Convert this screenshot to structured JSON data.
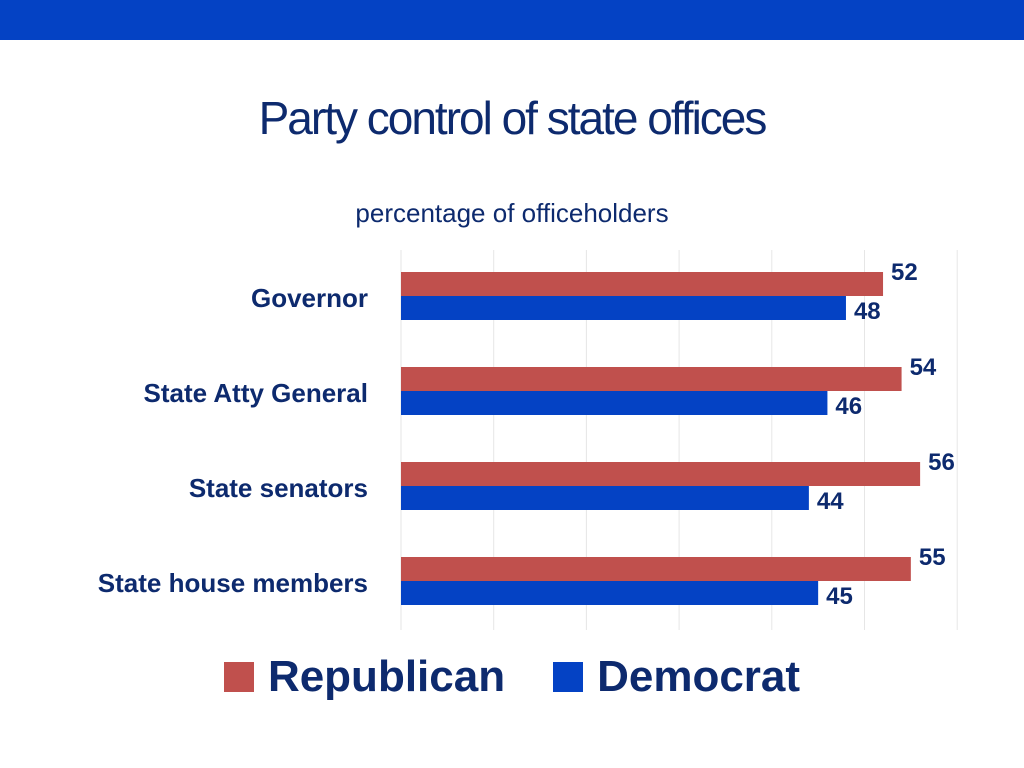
{
  "title": "Party control of state offices",
  "subtitle": "percentage of officeholders",
  "colors": {
    "republican": "#c0504d",
    "democrat": "#0442c4",
    "text": "#0d2a6e"
  },
  "chart_data": {
    "type": "bar",
    "orientation": "horizontal",
    "categories": [
      "Governor",
      "State Atty General",
      "State senators",
      "State house members"
    ],
    "series": [
      {
        "name": "Republican",
        "values": [
          52,
          54,
          56,
          55
        ]
      },
      {
        "name": "Democrat",
        "values": [
          48,
          46,
          44,
          45
        ]
      }
    ],
    "xlim": [
      0,
      60
    ],
    "grid": true,
    "legend": "bottom"
  }
}
